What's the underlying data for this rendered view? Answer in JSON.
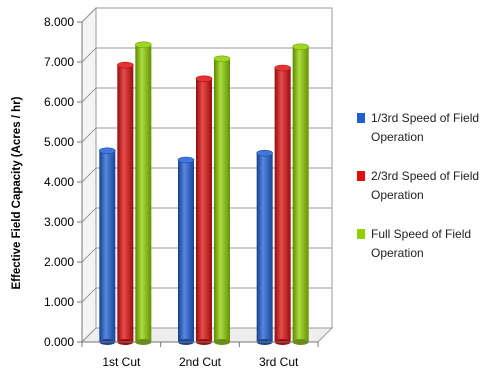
{
  "chart_data": {
    "type": "bar",
    "title": "",
    "xlabel": "",
    "ylabel": "Effective Field Capacity (Acres / hr)",
    "categories": [
      "1st Cut",
      "2nd Cut",
      "3rd Cut"
    ],
    "ylim": [
      0,
      8
    ],
    "y_ticks": [
      "0.000",
      "1.000",
      "2.000",
      "3.000",
      "4.000",
      "5.000",
      "6.000",
      "7.000",
      "8.000"
    ],
    "grid": true,
    "legend_position": "right",
    "series": [
      {
        "name": "1/3rd Speed of Field Operation",
        "color": "#1f5fd6",
        "values": [
          4.78,
          4.55,
          4.72
        ]
      },
      {
        "name": "2/3rd Speed of Field Operation",
        "color": "#e01010",
        "values": [
          6.92,
          6.58,
          6.85
        ]
      },
      {
        "name": "Full Speed of Field Operation",
        "color": "#8fd000",
        "values": [
          7.43,
          7.08,
          7.38
        ]
      }
    ]
  }
}
